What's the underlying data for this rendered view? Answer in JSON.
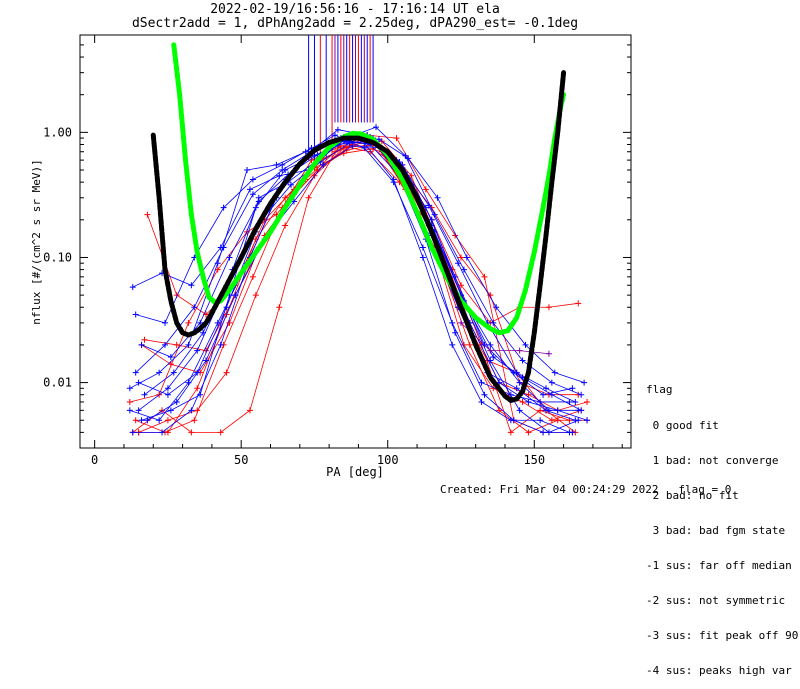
{
  "title_line1": "2022-02-19/16:56:16 - 17:16:14 UT ela",
  "title_line2": "dSectr2add = 1, dPhAng2add = 2.25deg, dPA290_est=  -0.1deg",
  "footer": "Created: Fri Mar 04 00:24:29 2022   flag = 0",
  "legend": {
    "heading": "flag",
    "items": [
      " 0 good fit",
      " 1 bad: not converge",
      " 2 bad: no fit",
      " 3 bad: bad fgm state",
      "-1 sus: far off median",
      "-2 sus: not symmetric",
      "-3 sus: fit peak off 90",
      "-4 sus: peaks high var"
    ]
  },
  "colors": {
    "red": "#ff0000",
    "blue": "#0000ff",
    "black": "#000000",
    "green": "#00ff00",
    "purple": "#8000a0"
  },
  "chart_data": {
    "type": "line",
    "xlabel": "PA [deg]",
    "ylabel": "nflux [#/(cm^2 s sr MeV)]",
    "xlim": [
      -5,
      183
    ],
    "ylim": [
      0.003,
      6
    ],
    "ylog": true,
    "xticks": [
      0,
      50,
      100,
      150
    ],
    "yticks": [
      0.01,
      0.1,
      1.0
    ],
    "ytick_labels": [
      "0.01",
      "0.10",
      "1.00"
    ],
    "fit_black": {
      "x": [
        20,
        22,
        24,
        26,
        28,
        30,
        32,
        34,
        36,
        38,
        40,
        45,
        50,
        55,
        60,
        65,
        70,
        75,
        80,
        85,
        90,
        95,
        100,
        105,
        110,
        115,
        120,
        125,
        130,
        135,
        140,
        142,
        144,
        146,
        148,
        150,
        152,
        154,
        156,
        158,
        160
      ],
      "y": [
        0.95,
        0.3,
        0.08,
        0.045,
        0.03,
        0.025,
        0.024,
        0.025,
        0.027,
        0.03,
        0.036,
        0.06,
        0.1,
        0.17,
        0.27,
        0.4,
        0.56,
        0.72,
        0.83,
        0.9,
        0.9,
        0.83,
        0.7,
        0.5,
        0.3,
        0.16,
        0.08,
        0.04,
        0.02,
        0.011,
        0.0078,
        0.0072,
        0.0074,
        0.0085,
        0.012,
        0.025,
        0.06,
        0.15,
        0.4,
        1.0,
        3.0
      ]
    },
    "fit_green": {
      "x": [
        27,
        29,
        31,
        33,
        35,
        37,
        39,
        41,
        43,
        46,
        50,
        55,
        60,
        65,
        70,
        75,
        80,
        85,
        88,
        91,
        95,
        100,
        105,
        110,
        115,
        120,
        125,
        130,
        135,
        138,
        141,
        144,
        147,
        150,
        153,
        155,
        157,
        159,
        160
      ],
      "y": [
        5.0,
        2.0,
        0.6,
        0.22,
        0.11,
        0.07,
        0.048,
        0.044,
        0.045,
        0.055,
        0.075,
        0.11,
        0.16,
        0.25,
        0.38,
        0.56,
        0.76,
        0.92,
        0.98,
        0.97,
        0.88,
        0.66,
        0.42,
        0.23,
        0.12,
        0.07,
        0.045,
        0.033,
        0.027,
        0.025,
        0.026,
        0.033,
        0.055,
        0.11,
        0.25,
        0.45,
        0.9,
        1.6,
        2.0
      ]
    },
    "data_series": [
      {
        "color": "red",
        "x": [
          15,
          25,
          35,
          45,
          55,
          65,
          75,
          85,
          95,
          105,
          115,
          125,
          135,
          145,
          155,
          165
        ],
        "y": [
          0.004,
          0.005,
          0.006,
          0.012,
          0.05,
          0.18,
          0.45,
          0.75,
          0.8,
          0.55,
          0.2,
          0.06,
          0.03,
          0.04,
          0.04,
          0.043
        ]
      },
      {
        "color": "red",
        "x": [
          17,
          28,
          38,
          48,
          58,
          68,
          78,
          88,
          98,
          108,
          118,
          128,
          138,
          148,
          158,
          168
        ],
        "y": [
          0.022,
          0.02,
          0.018,
          0.05,
          0.15,
          0.32,
          0.55,
          0.8,
          0.85,
          0.45,
          0.12,
          0.03,
          0.01,
          0.008,
          0.006,
          0.007
        ]
      },
      {
        "color": "red",
        "x": [
          12,
          22,
          32,
          42,
          52,
          62,
          72,
          82,
          92,
          102,
          112,
          122,
          132,
          142,
          152,
          162
        ],
        "y": [
          0.007,
          0.008,
          0.03,
          0.08,
          0.16,
          0.22,
          0.42,
          0.7,
          0.9,
          0.6,
          0.22,
          0.08,
          0.02,
          0.004,
          0.006,
          0.005
        ]
      },
      {
        "color": "red",
        "x": [
          13,
          23,
          33,
          43,
          53,
          63,
          73,
          83,
          93,
          103,
          113,
          123,
          133,
          143,
          153,
          163
        ],
        "y": [
          0.004,
          0.006,
          0.004,
          0.004,
          0.006,
          0.04,
          0.3,
          0.75,
          0.95,
          0.9,
          0.35,
          0.15,
          0.07,
          0.005,
          0.004,
          0.004
        ]
      },
      {
        "color": "red",
        "x": [
          16,
          26,
          36,
          46,
          56,
          66,
          76,
          86,
          96,
          106,
          116,
          126,
          136,
          146,
          156,
          166
        ],
        "y": [
          0.02,
          0.014,
          0.012,
          0.03,
          0.12,
          0.28,
          0.5,
          0.72,
          0.8,
          0.35,
          0.12,
          0.02,
          0.009,
          0.007,
          0.005,
          0.006
        ]
      },
      {
        "color": "red",
        "x": [
          14,
          24,
          34,
          44,
          54,
          64,
          74,
          84,
          94,
          104,
          114,
          124,
          134,
          144,
          154,
          164
        ],
        "y": [
          0.005,
          0.004,
          0.005,
          0.02,
          0.07,
          0.25,
          0.6,
          0.78,
          0.7,
          0.4,
          0.18,
          0.04,
          0.015,
          0.012,
          0.006,
          0.004
        ]
      },
      {
        "color": "red",
        "x": [
          18,
          28,
          38,
          48,
          58,
          68,
          78,
          88,
          98,
          108,
          118,
          128,
          138,
          148,
          158,
          168
        ],
        "y": [
          0.22,
          0.05,
          0.035,
          0.06,
          0.2,
          0.35,
          0.62,
          0.8,
          0.7,
          0.3,
          0.09,
          0.02,
          0.006,
          0.004,
          0.005,
          0.005
        ]
      },
      {
        "color": "red",
        "x": [
          15,
          25,
          35,
          45,
          55,
          65,
          75,
          85,
          95,
          105,
          115,
          125,
          135,
          145,
          155,
          165
        ],
        "y": [
          0.004,
          0.004,
          0.009,
          0.035,
          0.14,
          0.3,
          0.52,
          0.68,
          0.74,
          0.5,
          0.25,
          0.1,
          0.05,
          0.01,
          0.008,
          0.008
        ]
      },
      {
        "color": "blue",
        "x": [
          13,
          23,
          33,
          43,
          53,
          63,
          73,
          83,
          93,
          103,
          113,
          123,
          133,
          143,
          153,
          163
        ],
        "y": [
          0.058,
          0.075,
          0.06,
          0.12,
          0.35,
          0.45,
          0.5,
          0.8,
          0.85,
          0.6,
          0.25,
          0.07,
          0.02,
          0.012,
          0.008,
          0.009
        ]
      },
      {
        "color": "blue",
        "x": [
          15,
          25,
          35,
          45,
          55,
          65,
          75,
          85,
          95,
          105,
          115,
          125,
          135,
          145,
          155,
          165
        ],
        "y": [
          0.006,
          0.009,
          0.018,
          0.06,
          0.25,
          0.5,
          0.65,
          0.85,
          0.9,
          0.55,
          0.2,
          0.05,
          0.015,
          0.006,
          0.004,
          0.005
        ]
      },
      {
        "color": "blue",
        "x": [
          12,
          22,
          32,
          42,
          52,
          62,
          72,
          82,
          92,
          102,
          112,
          122,
          132,
          142,
          152,
          162
        ],
        "y": [
          0.009,
          0.012,
          0.02,
          0.09,
          0.5,
          0.55,
          0.7,
          0.95,
          0.75,
          0.4,
          0.12,
          0.03,
          0.01,
          0.008,
          0.007,
          0.007
        ]
      },
      {
        "color": "blue",
        "x": [
          14,
          24,
          34,
          44,
          54,
          64,
          74,
          84,
          94,
          104,
          114,
          124,
          134,
          144,
          154,
          164
        ],
        "y": [
          0.035,
          0.03,
          0.1,
          0.25,
          0.42,
          0.55,
          0.75,
          0.88,
          0.8,
          0.45,
          0.15,
          0.04,
          0.012,
          0.009,
          0.006,
          0.005
        ]
      },
      {
        "color": "blue",
        "x": [
          16,
          26,
          36,
          46,
          56,
          66,
          76,
          86,
          96,
          106,
          116,
          126,
          136,
          146,
          156,
          166
        ],
        "y": [
          0.005,
          0.006,
          0.008,
          0.05,
          0.3,
          0.4,
          0.6,
          0.9,
          1.1,
          0.65,
          0.22,
          0.08,
          0.03,
          0.015,
          0.01,
          0.008
        ]
      },
      {
        "color": "blue",
        "x": [
          13,
          23,
          33,
          43,
          53,
          63,
          73,
          83,
          93,
          103,
          113,
          123,
          133,
          143,
          153,
          163
        ],
        "y": [
          0.004,
          0.004,
          0.006,
          0.02,
          0.1,
          0.35,
          0.68,
          1.05,
          0.95,
          0.5,
          0.14,
          0.025,
          0.008,
          0.005,
          0.004,
          0.004
        ]
      },
      {
        "color": "blue",
        "x": [
          17,
          27,
          37,
          47,
          57,
          67,
          77,
          87,
          97,
          107,
          117,
          127,
          137,
          147,
          157,
          167
        ],
        "y": [
          0.008,
          0.012,
          0.025,
          0.08,
          0.2,
          0.38,
          0.58,
          0.82,
          0.88,
          0.62,
          0.3,
          0.1,
          0.04,
          0.02,
          0.012,
          0.01
        ]
      },
      {
        "color": "blue",
        "x": [
          15,
          25,
          35,
          45,
          55,
          65,
          75,
          85,
          95,
          105,
          115,
          125,
          135,
          145,
          155,
          165
        ],
        "y": [
          0.01,
          0.008,
          0.012,
          0.04,
          0.16,
          0.42,
          0.72,
          0.92,
          0.86,
          0.52,
          0.18,
          0.05,
          0.02,
          0.01,
          0.006,
          0.006
        ]
      },
      {
        "color": "blue",
        "x": [
          12,
          22,
          32,
          42,
          52,
          62,
          72,
          82,
          92,
          102,
          112,
          122,
          132,
          142,
          152,
          162
        ],
        "y": [
          0.006,
          0.005,
          0.01,
          0.03,
          0.09,
          0.3,
          0.62,
          0.86,
          0.82,
          0.42,
          0.1,
          0.02,
          0.007,
          0.005,
          0.005,
          0.004
        ]
      },
      {
        "color": "blue",
        "x": [
          14,
          24,
          34,
          44,
          54,
          64,
          74,
          84,
          94,
          104,
          114,
          124,
          134,
          144,
          154,
          164
        ],
        "y": [
          0.012,
          0.02,
          0.04,
          0.12,
          0.32,
          0.5,
          0.7,
          0.9,
          0.92,
          0.58,
          0.26,
          0.09,
          0.03,
          0.012,
          0.009,
          0.007
        ]
      },
      {
        "color": "blue",
        "x": [
          18,
          28,
          38,
          48,
          58,
          68,
          78,
          88,
          98,
          108,
          118,
          128,
          138,
          148,
          158,
          168
        ],
        "y": [
          0.005,
          0.007,
          0.015,
          0.05,
          0.14,
          0.28,
          0.55,
          0.78,
          0.75,
          0.38,
          0.11,
          0.03,
          0.01,
          0.007,
          0.006,
          0.005
        ]
      },
      {
        "color": "blue",
        "x": [
          16,
          26,
          36,
          46,
          56,
          66,
          76,
          86,
          96,
          106,
          116,
          126,
          136,
          146,
          156,
          166
        ],
        "y": [
          0.02,
          0.016,
          0.03,
          0.1,
          0.28,
          0.46,
          0.66,
          0.84,
          0.8,
          0.48,
          0.16,
          0.045,
          0.016,
          0.011,
          0.008,
          0.006
        ]
      },
      {
        "color": "purple",
        "x": [
          125,
          135,
          145,
          155
        ],
        "y": [
          0.03,
          0.018,
          0.018,
          0.017
        ]
      }
    ],
    "vlines": {
      "x": [
        73,
        75,
        77,
        79,
        81,
        82,
        83,
        84,
        85,
        86,
        87,
        88,
        89,
        90,
        91,
        92,
        93,
        94,
        95
      ],
      "colors": [
        "blue",
        "blue",
        "red",
        "blue",
        "red",
        "purple",
        "blue",
        "red",
        "purple",
        "blue",
        "red",
        "blue",
        "purple",
        "red",
        "blue",
        "purple",
        "blue",
        "red",
        "blue"
      ],
      "y_top": 6,
      "y_bottom_left": 0.6,
      "y_bottom_right": 1.2
    }
  }
}
